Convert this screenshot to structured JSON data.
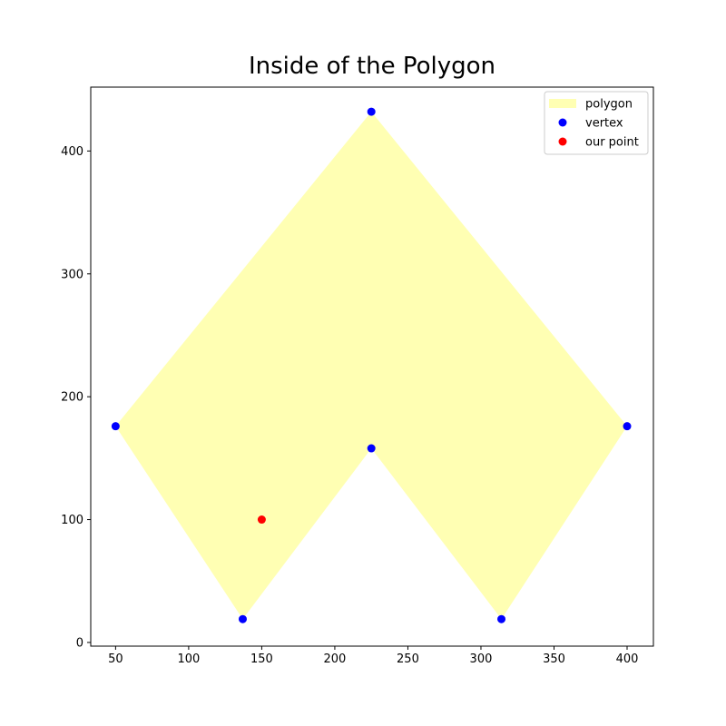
{
  "chart_data": {
    "type": "scatter",
    "title": "Inside of the Polygon",
    "xlabel": "",
    "ylabel": "",
    "xlim": [
      33,
      418
    ],
    "ylim": [
      -3,
      452
    ],
    "x_ticks": [
      50,
      100,
      150,
      200,
      250,
      300,
      350,
      400
    ],
    "y_ticks": [
      0,
      100,
      200,
      300,
      400
    ],
    "grid": false,
    "legend_position": "top-right",
    "polygon": {
      "name": "polygon",
      "color": "#ffffb3",
      "points": [
        [
          50,
          176
        ],
        [
          225,
          432
        ],
        [
          400,
          176
        ],
        [
          314,
          19
        ],
        [
          225,
          158
        ],
        [
          137,
          19
        ]
      ]
    },
    "series": [
      {
        "name": "vertex",
        "color": "#0000ff",
        "points": [
          [
            50,
            176
          ],
          [
            225,
            432
          ],
          [
            400,
            176
          ],
          [
            314,
            19
          ],
          [
            225,
            158
          ],
          [
            137,
            19
          ]
        ]
      },
      {
        "name": "our point",
        "color": "#ff0000",
        "points": [
          [
            150,
            100
          ]
        ]
      }
    ]
  }
}
